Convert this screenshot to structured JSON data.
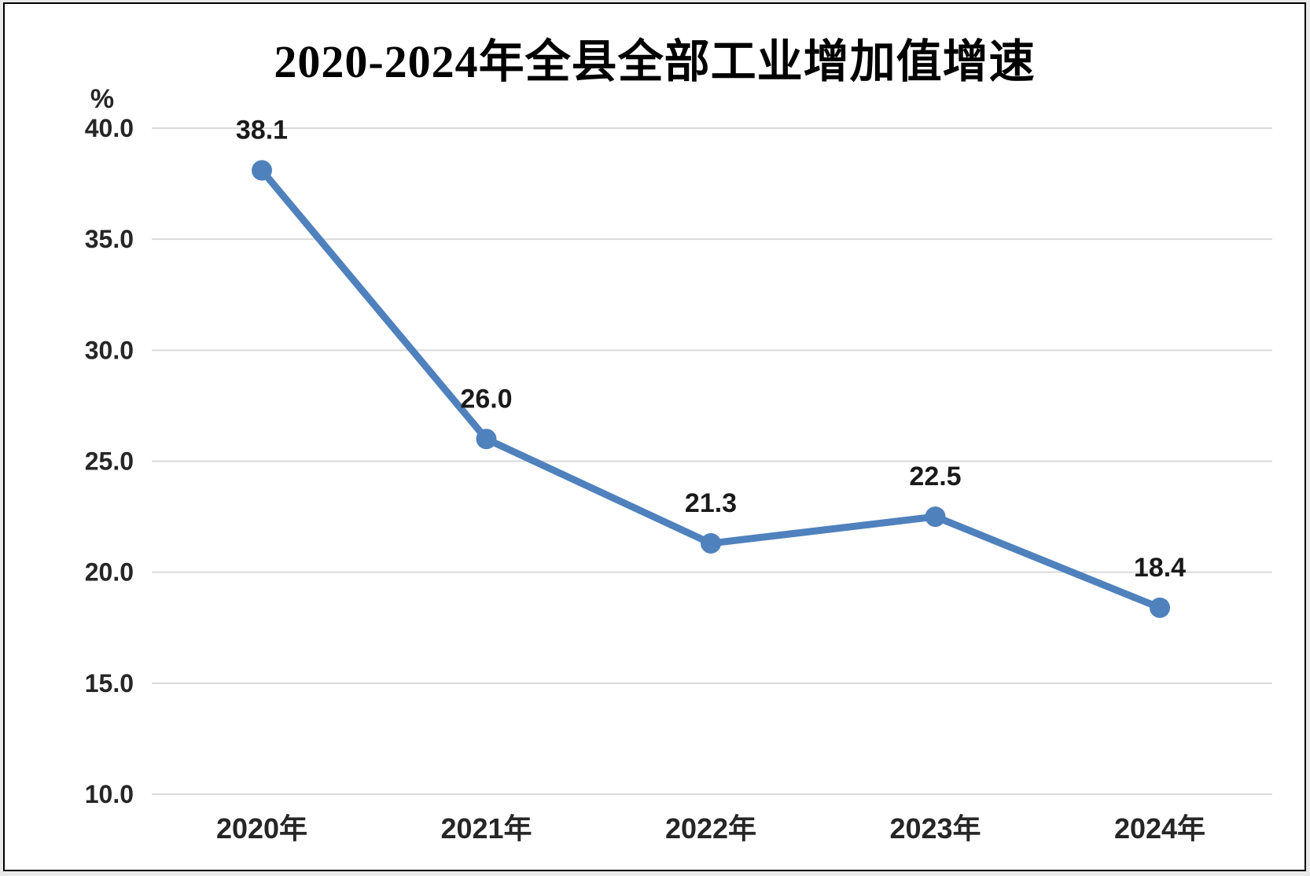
{
  "title": "2020-2024年全县全部工业增加值增速",
  "chart_data": {
    "type": "line",
    "title": "2020-2024年全县全部工业增加值增速",
    "unit_label": "%",
    "categories": [
      "2020年",
      "2021年",
      "2022年",
      "2023年",
      "2024年"
    ],
    "values": [
      38.1,
      26.0,
      21.3,
      22.5,
      18.4
    ],
    "data_labels": [
      "38.1",
      "26.0",
      "21.3",
      "22.5",
      "18.4"
    ],
    "xlabel": "",
    "ylabel": "%",
    "ylim": [
      10,
      40
    ],
    "y_tick_step": 5,
    "y_tick_labels": [
      "10.0",
      "15.0",
      "20.0",
      "25.0",
      "30.0",
      "35.0",
      "40.0"
    ],
    "grid": true,
    "legend_position": "none",
    "colors": {
      "line": "#4f81bd",
      "marker": "#4f81bd",
      "gridline": "#d9d9d9",
      "tick_text": "#262626",
      "data_label_text": "#1a1a1a",
      "title_text": "#000000"
    }
  }
}
